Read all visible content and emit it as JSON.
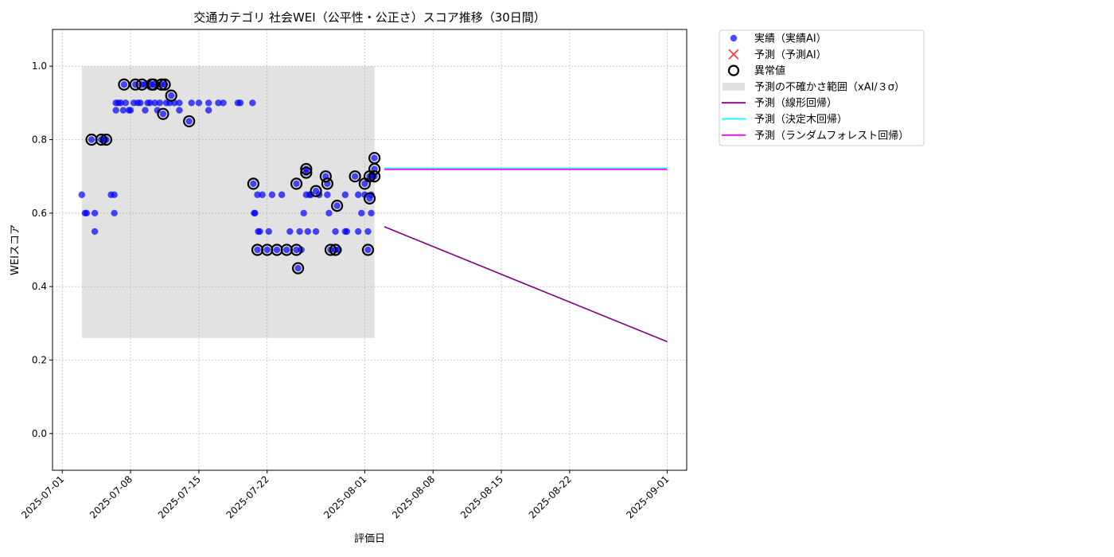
{
  "chart_data": {
    "type": "scatter",
    "title": "交通カテゴリ 社会WEI（公平性・公正さ）スコア推移（30日間）",
    "xlabel": "評価日",
    "ylabel": "WEIスコア",
    "xlim": [
      "2025-06-30",
      "2025-09-03"
    ],
    "ylim": [
      -0.1,
      1.1
    ],
    "x_ticks": [
      "2025-07-01",
      "2025-07-08",
      "2025-07-15",
      "2025-07-22",
      "2025-08-01",
      "2025-08-08",
      "2025-08-15",
      "2025-08-22",
      "2025-09-01"
    ],
    "y_ticks": [
      0.0,
      0.2,
      0.4,
      0.6,
      0.8,
      1.0
    ],
    "grid": true,
    "legend": {
      "placement": "outside-top-right",
      "entries": [
        {
          "label": "実績（実績AI）",
          "marker": "dot",
          "color": "#0000ff"
        },
        {
          "label": "予測（予測AI）",
          "marker": "x",
          "color": "#ff0000"
        },
        {
          "label": "異常値",
          "marker": "ring",
          "color": "#000000"
        },
        {
          "label": "予測の不確かさ範囲（xAI/３σ）",
          "marker": "band",
          "color": "#d3d3d3"
        },
        {
          "label": "予測（線形回帰）",
          "marker": "line",
          "color": "#800080"
        },
        {
          "label": "予測（決定木回帰）",
          "marker": "line",
          "color": "#00ffff"
        },
        {
          "label": "予測（ランダムフォレスト回帰）",
          "marker": "line",
          "color": "#ff00ff"
        }
      ]
    },
    "uncertainty_band": {
      "x_start": "2025-07-03",
      "x_end": "2025-08-02",
      "y_low": 0.26,
      "y_high": 1.0
    },
    "actual": [
      [
        "2025-07-03 00:00",
        0.65
      ],
      [
        "2025-07-03 08:00",
        0.6
      ],
      [
        "2025-07-03 12:00",
        0.6
      ],
      [
        "2025-07-04 00:00",
        0.8
      ],
      [
        "2025-07-04 08:00",
        0.6
      ],
      [
        "2025-07-04 08:00",
        0.55
      ],
      [
        "2025-07-05 00:00",
        0.8
      ],
      [
        "2025-07-05 08:00",
        0.8
      ],
      [
        "2025-07-05 12:00",
        0.8
      ],
      [
        "2025-07-06 00:00",
        0.65
      ],
      [
        "2025-07-06 08:00",
        0.65
      ],
      [
        "2025-07-06 08:00",
        0.6
      ],
      [
        "2025-07-06 12:00",
        0.9
      ],
      [
        "2025-07-06 12:00",
        0.88
      ],
      [
        "2025-07-06 18:00",
        0.9
      ],
      [
        "2025-07-07 00:00",
        0.9
      ],
      [
        "2025-07-07 08:00",
        0.95
      ],
      [
        "2025-07-07 06:00",
        0.88
      ],
      [
        "2025-07-07 12:00",
        0.9
      ],
      [
        "2025-07-07 20:00",
        0.88
      ],
      [
        "2025-07-08 00:00",
        0.88
      ],
      [
        "2025-07-08 08:00",
        0.9
      ],
      [
        "2025-07-08 12:00",
        0.95
      ],
      [
        "2025-07-08 18:00",
        0.9
      ],
      [
        "2025-07-09 00:00",
        0.9
      ],
      [
        "2025-07-09 04:00",
        0.95
      ],
      [
        "2025-07-09 12:00",
        0.95
      ],
      [
        "2025-07-09 12:00",
        0.88
      ],
      [
        "2025-07-09 18:00",
        0.9
      ],
      [
        "2025-07-10 00:00",
        0.9
      ],
      [
        "2025-07-10 04:00",
        0.95
      ],
      [
        "2025-07-10 08:00",
        0.95
      ],
      [
        "2025-07-10 12:00",
        0.9
      ],
      [
        "2025-07-10 18:00",
        0.88
      ],
      [
        "2025-07-11 00:00",
        0.9
      ],
      [
        "2025-07-11 04:00",
        0.95
      ],
      [
        "2025-07-11 08:00",
        0.87
      ],
      [
        "2025-07-11 12:00",
        0.95
      ],
      [
        "2025-07-11 16:00",
        0.9
      ],
      [
        "2025-07-12 00:00",
        0.9
      ],
      [
        "2025-07-12 04:00",
        0.92
      ],
      [
        "2025-07-12 12:00",
        0.9
      ],
      [
        "2025-07-13 00:00",
        0.88
      ],
      [
        "2025-07-13 00:00",
        0.9
      ],
      [
        "2025-07-14 00:00",
        0.85
      ],
      [
        "2025-07-14 06:00",
        0.9
      ],
      [
        "2025-07-15 00:00",
        0.9
      ],
      [
        "2025-07-16 00:00",
        0.88
      ],
      [
        "2025-07-16 00:00",
        0.9
      ],
      [
        "2025-07-17 00:00",
        0.9
      ],
      [
        "2025-07-17 12:00",
        0.9
      ],
      [
        "2025-07-19 00:00",
        0.9
      ],
      [
        "2025-07-19 06:00",
        0.9
      ],
      [
        "2025-07-20 12:00",
        0.9
      ],
      [
        "2025-07-20 14:00",
        0.68
      ],
      [
        "2025-07-20 16:00",
        0.6
      ],
      [
        "2025-07-20 18:00",
        0.6
      ],
      [
        "2025-07-21 00:00",
        0.65
      ],
      [
        "2025-07-21 02:00",
        0.55
      ],
      [
        "2025-07-21 06:00",
        0.55
      ],
      [
        "2025-07-21 00:00",
        0.5
      ],
      [
        "2025-07-21 12:00",
        0.65
      ],
      [
        "2025-07-22 00:00",
        0.5
      ],
      [
        "2025-07-22 04:00",
        0.55
      ],
      [
        "2025-07-22 12:00",
        0.65
      ],
      [
        "2025-07-23 00:00",
        0.5
      ],
      [
        "2025-07-23 12:00",
        0.65
      ],
      [
        "2025-07-24 00:00",
        0.5
      ],
      [
        "2025-07-24 08:00",
        0.55
      ],
      [
        "2025-07-25 00:00",
        0.5
      ],
      [
        "2025-07-25 00:00",
        0.68
      ],
      [
        "2025-07-25 04:00",
        0.45
      ],
      [
        "2025-07-25 08:00",
        0.55
      ],
      [
        "2025-07-25 12:00",
        0.5
      ],
      [
        "2025-07-25 18:00",
        0.6
      ],
      [
        "2025-07-26 00:00",
        0.72
      ],
      [
        "2025-07-26 00:00",
        0.71
      ],
      [
        "2025-07-26 00:00",
        0.65
      ],
      [
        "2025-07-26 04:00",
        0.55
      ],
      [
        "2025-07-26 08:00",
        0.65
      ],
      [
        "2025-07-26 12:00",
        0.65
      ],
      [
        "2025-07-27 00:00",
        0.55
      ],
      [
        "2025-07-27 00:00",
        0.66
      ],
      [
        "2025-07-27 08:00",
        0.65
      ],
      [
        "2025-07-28 00:00",
        0.7
      ],
      [
        "2025-07-28 04:00",
        0.68
      ],
      [
        "2025-07-28 04:00",
        0.65
      ],
      [
        "2025-07-28 08:00",
        0.6
      ],
      [
        "2025-07-28 12:00",
        0.5
      ],
      [
        "2025-07-29 00:00",
        0.5
      ],
      [
        "2025-07-29 04:00",
        0.62
      ],
      [
        "2025-07-29 00:00",
        0.55
      ],
      [
        "2025-07-29 08:00",
        0.5
      ],
      [
        "2025-07-30 00:00",
        0.55
      ],
      [
        "2025-07-30 00:00",
        0.65
      ],
      [
        "2025-07-30 04:00",
        0.55
      ],
      [
        "2025-07-31 00:00",
        0.7
      ],
      [
        "2025-07-31 08:00",
        0.55
      ],
      [
        "2025-07-31 08:00",
        0.65
      ],
      [
        "2025-07-31 16:00",
        0.6
      ],
      [
        "2025-08-01 00:00",
        0.68
      ],
      [
        "2025-08-01 00:00",
        0.65
      ],
      [
        "2025-08-01 08:00",
        0.5
      ],
      [
        "2025-08-01 08:00",
        0.55
      ],
      [
        "2025-08-01 12:00",
        0.7
      ],
      [
        "2025-08-01 12:00",
        0.64
      ],
      [
        "2025-08-01 16:00",
        0.6
      ],
      [
        "2025-08-01 16:00",
        0.65
      ],
      [
        "2025-08-01 20:00",
        0.7
      ],
      [
        "2025-08-02 00:00",
        0.72
      ],
      [
        "2025-08-02 00:00",
        0.75
      ],
      [
        "2025-08-02 00:00",
        0.7
      ]
    ],
    "anomalies": [
      [
        "2025-07-04 00:00",
        0.8
      ],
      [
        "2025-07-05 00:00",
        0.8
      ],
      [
        "2025-07-05 12:00",
        0.8
      ],
      [
        "2025-07-07 08:00",
        0.95
      ],
      [
        "2025-07-08 12:00",
        0.95
      ],
      [
        "2025-07-09 04:00",
        0.95
      ],
      [
        "2025-07-10 04:00",
        0.95
      ],
      [
        "2025-07-10 08:00",
        0.95
      ],
      [
        "2025-07-11 04:00",
        0.95
      ],
      [
        "2025-07-11 12:00",
        0.95
      ],
      [
        "2025-07-11 08:00",
        0.87
      ],
      [
        "2025-07-12 04:00",
        0.92
      ],
      [
        "2025-07-14 00:00",
        0.85
      ],
      [
        "2025-07-20 14:00",
        0.68
      ],
      [
        "2025-07-21 00:00",
        0.5
      ],
      [
        "2025-07-22 00:00",
        0.5
      ],
      [
        "2025-07-23 00:00",
        0.5
      ],
      [
        "2025-07-24 00:00",
        0.5
      ],
      [
        "2025-07-25 00:00",
        0.5
      ],
      [
        "2025-07-25 00:00",
        0.68
      ],
      [
        "2025-07-25 04:00",
        0.45
      ],
      [
        "2025-07-26 00:00",
        0.72
      ],
      [
        "2025-07-26 00:00",
        0.71
      ],
      [
        "2025-07-27 00:00",
        0.66
      ],
      [
        "2025-07-28 00:00",
        0.7
      ],
      [
        "2025-07-28 04:00",
        0.68
      ],
      [
        "2025-07-28 12:00",
        0.5
      ],
      [
        "2025-07-29 00:00",
        0.5
      ],
      [
        "2025-07-29 04:00",
        0.62
      ],
      [
        "2025-07-31 00:00",
        0.7
      ],
      [
        "2025-08-01 00:00",
        0.68
      ],
      [
        "2025-08-01 08:00",
        0.5
      ],
      [
        "2025-08-01 12:00",
        0.7
      ],
      [
        "2025-08-01 12:00",
        0.64
      ],
      [
        "2025-08-02 00:00",
        0.75
      ],
      [
        "2025-08-02 00:00",
        0.72
      ],
      [
        "2025-08-02 00:00",
        0.7
      ]
    ],
    "forecasts": [
      {
        "name": "予測（線形回帰）",
        "color": "#800080",
        "x": [
          "2025-08-03",
          "2025-09-01"
        ],
        "y": [
          0.563,
          0.25
        ]
      },
      {
        "name": "予測（決定木回帰）",
        "color": "#00ffff",
        "x": [
          "2025-08-03",
          "2025-09-01"
        ],
        "y": [
          0.722,
          0.722
        ]
      },
      {
        "name": "予測（ランダムフォレスト回帰）",
        "color": "#ff00ff",
        "x": [
          "2025-08-03",
          "2025-09-01"
        ],
        "y": [
          0.719,
          0.719
        ]
      }
    ]
  }
}
